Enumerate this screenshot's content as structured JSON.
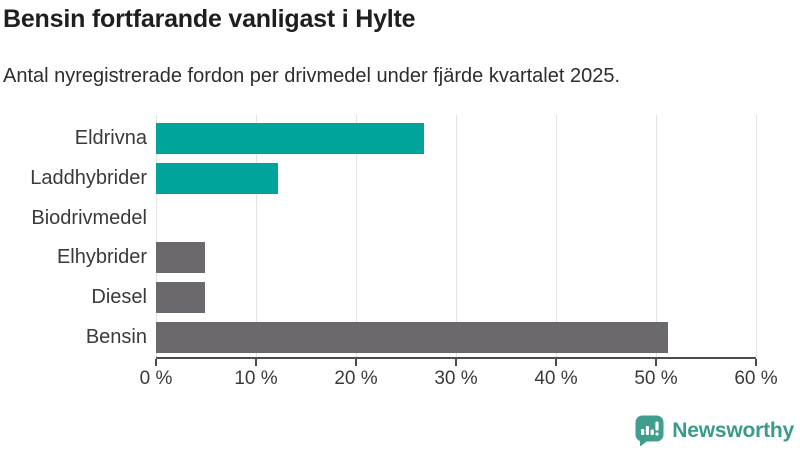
{
  "header": {
    "title": "Bensin fortfarande vanligast i Hylte",
    "subtitle": "Antal nyregistrerade fordon per drivmedel under fjärde kvartalet 2025."
  },
  "chart_data": {
    "type": "bar",
    "orientation": "horizontal",
    "title": "Bensin fortfarande vanligast i Hylte",
    "subtitle": "Antal nyregistrerade fordon per drivmedel under fjärde kvartalet 2025.",
    "categories": [
      "Eldrivna",
      "Laddhybrider",
      "Biodrivmedel",
      "Elhybrider",
      "Diesel",
      "Bensin"
    ],
    "values": [
      26.8,
      12.2,
      0,
      4.9,
      4.9,
      51.2
    ],
    "unit": "%",
    "xlabel": "",
    "ylabel": "",
    "xlim": [
      0,
      60
    ],
    "x_ticks": [
      0,
      10,
      20,
      30,
      40,
      50,
      60
    ],
    "x_tick_labels": [
      "0 %",
      "10 %",
      "20 %",
      "30 %",
      "40 %",
      "50 %",
      "60 %"
    ],
    "grid": true,
    "legend": false,
    "bar_colors": [
      "#00A49A",
      "#00A49A",
      "#00A49A",
      "#6B686E",
      "#6B686E",
      "#6B686E"
    ]
  },
  "footer": {
    "brand": "Newsworthy"
  },
  "colors": {
    "accent_teal": "#00A49A",
    "bar_gray": "#6B686E",
    "brand_teal": "#3A9B8C",
    "title_text": "#1E1E1E",
    "body_text": "#2D2D2D",
    "label_text": "#3A3A3A",
    "axis": "#4C4C4C",
    "gridline": "#E2E2E2",
    "background": "#FFFFFF"
  }
}
